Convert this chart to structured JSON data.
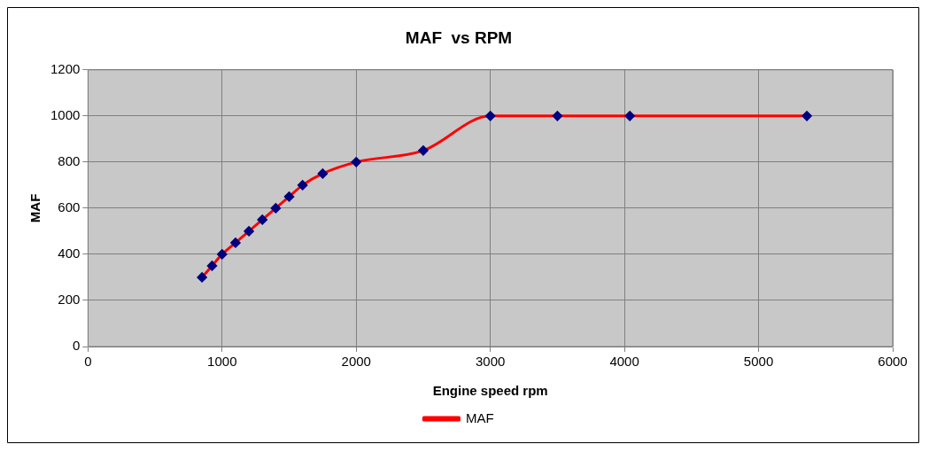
{
  "chart_data": {
    "type": "line",
    "title": "MAF  vs RPM",
    "xlabel": "Engine speed rpm",
    "ylabel": "MAF",
    "x": [
      850,
      925,
      1000,
      1100,
      1200,
      1300,
      1400,
      1500,
      1600,
      1750,
      2000,
      2500,
      3000,
      3500,
      4040,
      5360
    ],
    "series": [
      {
        "name": "MAF",
        "color": "#ff0000",
        "values": [
          300,
          350,
          400,
          450,
          500,
          550,
          600,
          650,
          700,
          750,
          800,
          850,
          1000,
          1000,
          1000,
          1000
        ]
      }
    ],
    "xlim": [
      0,
      6000
    ],
    "xticks": [
      0,
      1000,
      2000,
      3000,
      4000,
      5000,
      6000
    ],
    "ylim": [
      0,
      1200
    ],
    "yticks": [
      0,
      200,
      400,
      600,
      800,
      1000,
      1200
    ],
    "grid": true,
    "legend": "bottom",
    "marker": "diamond",
    "line_style": "solid"
  }
}
